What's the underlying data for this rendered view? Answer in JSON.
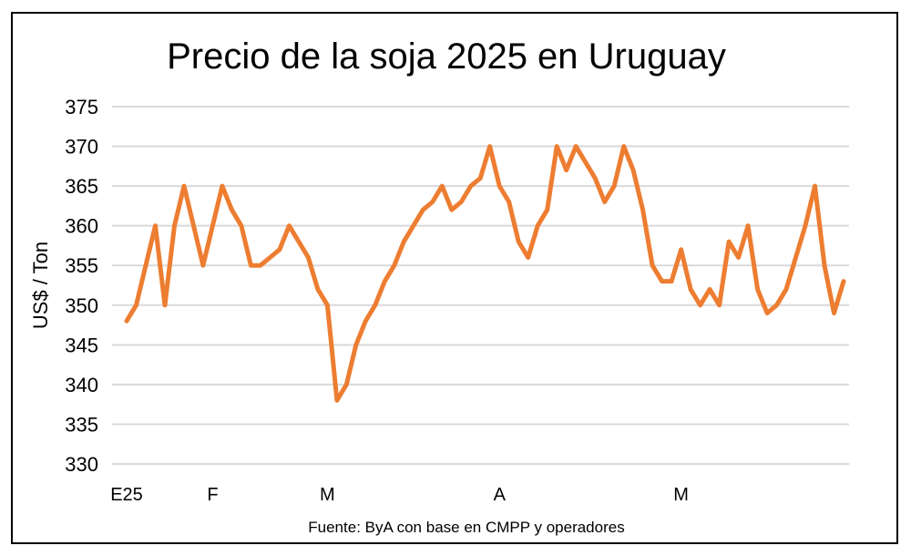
{
  "chart_data": {
    "type": "line",
    "title": "Precio de la soja 2025 en Uruguay",
    "ylabel": "US$ / Ton",
    "xlabel": "",
    "source": "Fuente: ByA con base en CMPP y operadores",
    "ylim": [
      330,
      375
    ],
    "yticks": [
      330,
      335,
      340,
      345,
      350,
      355,
      360,
      365,
      370,
      375
    ],
    "grid": true,
    "legend": "none",
    "line_color": "#ED7D31",
    "xtick_labels": [
      {
        "index": 0,
        "label": "E25"
      },
      {
        "index": 9,
        "label": "F"
      },
      {
        "index": 21,
        "label": "M"
      },
      {
        "index": 39,
        "label": "A"
      },
      {
        "index": 58,
        "label": "M"
      }
    ],
    "values": [
      348,
      350,
      355,
      360,
      350,
      360,
      365,
      360,
      355,
      360,
      365,
      362,
      360,
      355,
      355,
      356,
      357,
      360,
      358,
      356,
      352,
      350,
      338,
      340,
      345,
      348,
      350,
      353,
      355,
      358,
      360,
      362,
      363,
      365,
      362,
      363,
      365,
      366,
      370,
      365,
      363,
      358,
      356,
      360,
      362,
      370,
      367,
      370,
      368,
      366,
      363,
      365,
      370,
      367,
      362,
      355,
      353,
      353,
      357,
      352,
      350,
      352,
      350,
      358,
      356,
      360,
      352,
      349,
      350,
      352,
      356,
      360,
      365,
      355,
      349,
      353
    ]
  }
}
